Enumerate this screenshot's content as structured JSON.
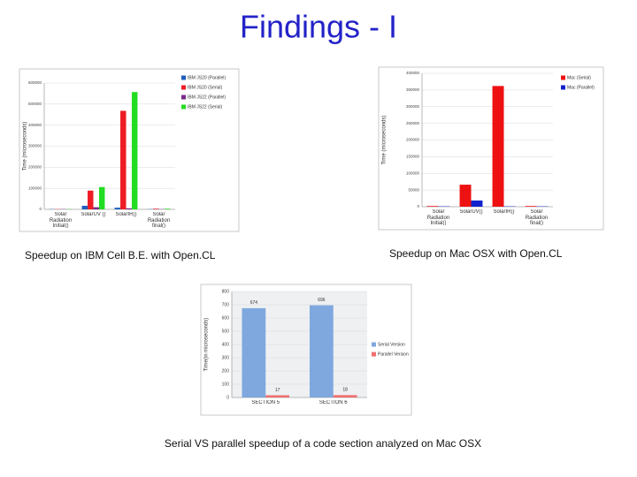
{
  "title": "Findings - I",
  "captions": [
    "Speedup on IBM Cell B.E. with Open.CL",
    "Speedup on Mac OSX with Open.CL",
    "Serial VS parallel speedup of a code section analyzed on Mac OSX"
  ],
  "chart_data": [
    {
      "type": "bar",
      "y_label": "Time (microseconds)",
      "categories": [
        "Solar Radiation Initial()",
        "SolarUV ()",
        "SolarIR()",
        "Solar Radiation final()"
      ],
      "series": [
        {
          "name": "IBM JS20 (Parallel)",
          "color": "#1f5fbf",
          "values": [
            1000,
            17000,
            8000,
            1000
          ]
        },
        {
          "name": "IBM JS20 (Serial)",
          "color": "#ee1c25",
          "values": [
            1000,
            89000,
            468000,
            3000
          ]
        },
        {
          "name": "IBM JS22 (Parallel)",
          "color": "#7a2a8a",
          "values": [
            1000,
            10000,
            5000,
            1000
          ]
        },
        {
          "name": "IBM JS22 (Serial)",
          "color": "#22dd22",
          "values": [
            1000,
            106000,
            557000,
            3000
          ]
        }
      ],
      "ylim": [
        0,
        600000
      ],
      "yticks": [
        0,
        100000,
        200000,
        300000,
        400000,
        500000,
        600000
      ],
      "legend": "upper right"
    },
    {
      "type": "bar",
      "y_label": "Time (microseconds)",
      "categories": [
        "Solar Radiation Initial()",
        "SolarUV()",
        "SolarIR()",
        "Solar Radiation final()"
      ],
      "series": [
        {
          "name": "Mac (Serial)",
          "color": "#ee1111",
          "values": [
            2000,
            66000,
            362000,
            2000
          ]
        },
        {
          "name": "Mac (Parallel)",
          "color": "#1122cc",
          "values": [
            1000,
            18500,
            1000,
            1000
          ]
        }
      ],
      "ylim": [
        0,
        400000
      ],
      "yticks": [
        0,
        50000,
        100000,
        150000,
        200000,
        250000,
        300000,
        350000,
        400000
      ],
      "legend": "upper right"
    },
    {
      "type": "bar",
      "y_label": "Time(in microseconds)",
      "categories": [
        "SECTION 5",
        "SECTION 6"
      ],
      "series": [
        {
          "name": "Serial Version",
          "color": "#7fa8df",
          "values": [
            674,
            696
          ]
        },
        {
          "name": "Parallel Version",
          "color": "#f07070",
          "values": [
            17,
            18
          ]
        }
      ],
      "ylim": [
        0,
        800
      ],
      "yticks": [
        0,
        100,
        200,
        300,
        400,
        500,
        600,
        700,
        800
      ],
      "show_values": true,
      "legend": "center right"
    }
  ]
}
